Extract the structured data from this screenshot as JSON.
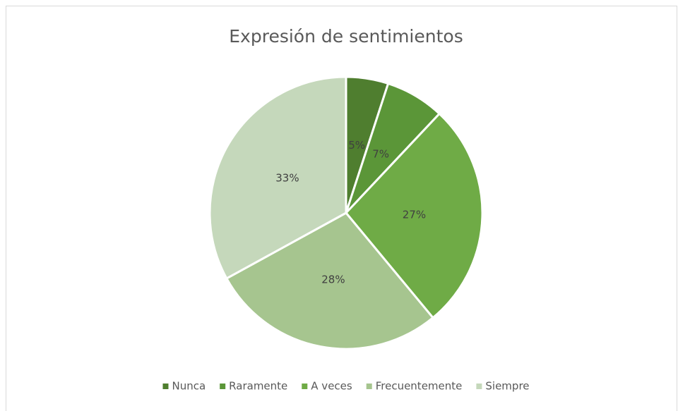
{
  "chart_data": {
    "type": "pie",
    "title": "Expresión de sentimientos",
    "categories": [
      "Nunca",
      "Raramente",
      "A veces",
      "Frecuentemente",
      "Siempre"
    ],
    "values": [
      5,
      7,
      27,
      28,
      33
    ],
    "value_labels": [
      "5%",
      "7%",
      "27%",
      "28%",
      "33%"
    ],
    "colors": [
      "#4f7e2f",
      "#5b9638",
      "#6fab46",
      "#a6c58f",
      "#c5d8bb"
    ],
    "legend": "bottom"
  }
}
